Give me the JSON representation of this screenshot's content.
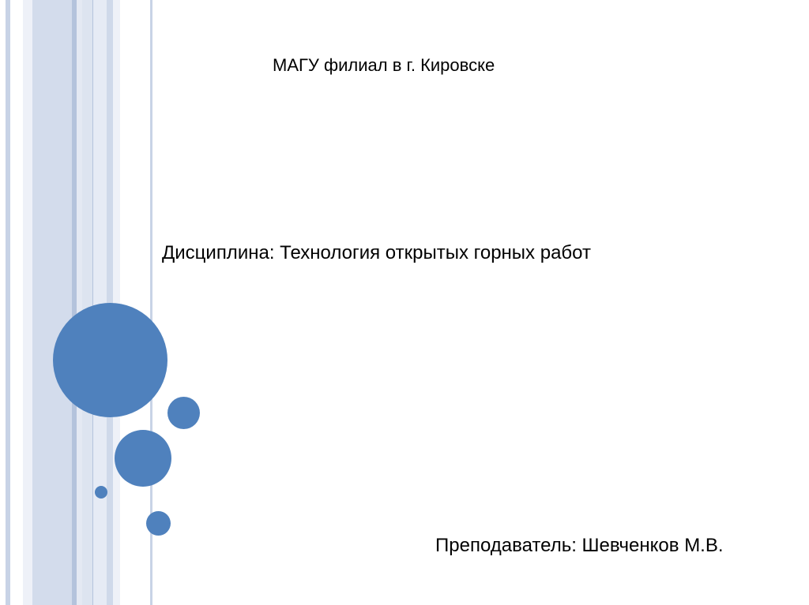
{
  "slide": {
    "header": "МАГУ филиал в г. Кировске",
    "discipline": "Дисциплина: Технология открытых горных работ",
    "teacher": "Преподаватель: Шевченков М.В."
  },
  "colors": {
    "accent": "#4f81bd",
    "stripe": "#d3dcec"
  }
}
